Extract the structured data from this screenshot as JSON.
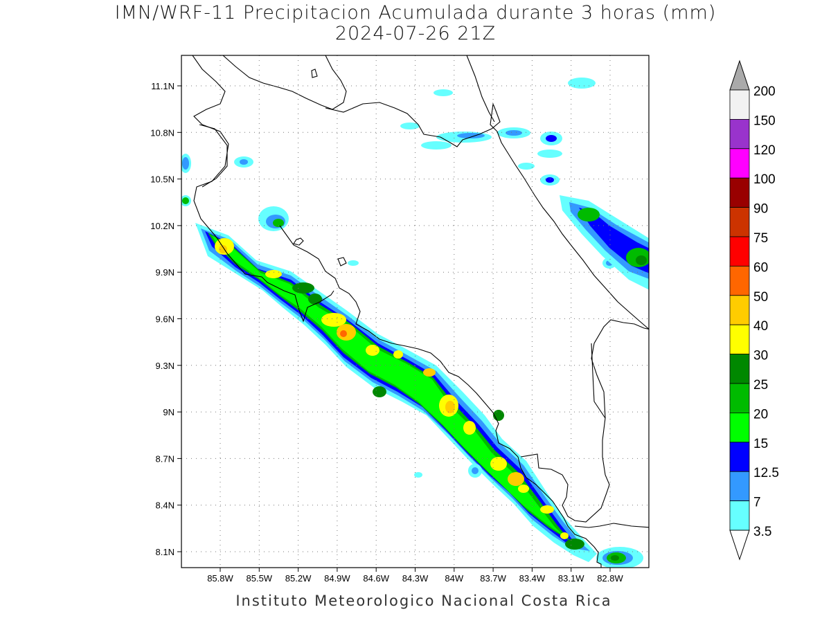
{
  "title_line1": "IMN/WRF-11 Precipitacion Acumulada durante 3 horas (mm)",
  "title_line2": "2024-07-26 21Z",
  "footer": "Instituto Meteorologico Nacional Costa Rica",
  "map": {
    "lat_labels": [
      "11.1N",
      "10.8N",
      "10.5N",
      "10.2N",
      "9.9N",
      "9.6N",
      "9.3N",
      "9N",
      "8.7N",
      "8.4N",
      "8.1N"
    ],
    "lon_labels": [
      "85.8W",
      "85.5W",
      "85.2W",
      "84.9W",
      "84.6W",
      "84.3W",
      "84W",
      "83.7W",
      "83.4W",
      "83.1W",
      "82.8W"
    ]
  },
  "colorbar": {
    "labels": [
      "200",
      "150",
      "120",
      "100",
      "90",
      "75",
      "60",
      "50",
      "40",
      "30",
      "25",
      "20",
      "15",
      "12.5",
      "7",
      "3.5"
    ],
    "colors": [
      "#f2f2f2",
      "#9933cc",
      "#ff00ff",
      "#990000",
      "#cc3300",
      "#ff0000",
      "#ff6600",
      "#ffcc00",
      "#ffff00",
      "#008800",
      "#00bb00",
      "#00ff00",
      "#0000ff",
      "#3399ff",
      "#66ffff"
    ],
    "over_color": "#aaaaaa",
    "under_color": "#ffffff"
  }
}
